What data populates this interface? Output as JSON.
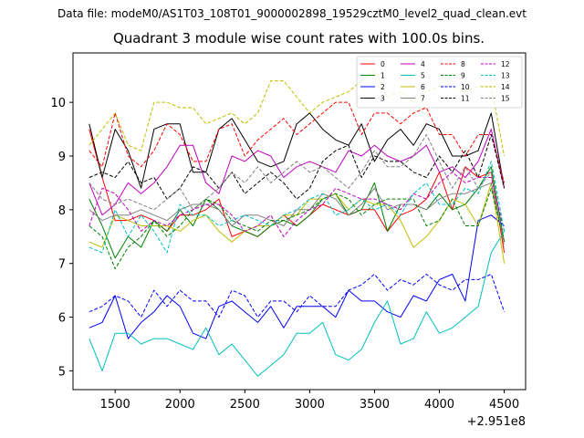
{
  "header": {
    "data_file": "Data file: modeM0/AS1T03_108T01_9000002898_19529cztM0_level2_quad_clean.evt"
  },
  "chart_data": {
    "type": "line",
    "title": "Quadrant 3 module wise count rates with 100.0s bins.",
    "xlabel": "",
    "ylabel": "",
    "x_offset_label": "+2.951e8",
    "xlim": [
      1175,
      4665
    ],
    "ylim": [
      4.65,
      10.92
    ],
    "xticks": [
      1500,
      2000,
      2500,
      3000,
      3500,
      4000,
      4500
    ],
    "xtick_labels": [
      "1500",
      "2000",
      "2500",
      "3000",
      "3500",
      "4000",
      "4500"
    ],
    "yticks": [
      5,
      6,
      7,
      8,
      9,
      10
    ],
    "ytick_labels": [
      "5",
      "6",
      "7",
      "8",
      "9",
      "10"
    ],
    "x": [
      1300,
      1400,
      1500,
      1600,
      1700,
      1800,
      1900,
      2000,
      2100,
      2200,
      2300,
      2400,
      2500,
      2600,
      2700,
      2800,
      2900,
      3000,
      3100,
      3200,
      3300,
      3400,
      3500,
      3600,
      3700,
      3800,
      3900,
      4000,
      4100,
      4200,
      4300,
      4400,
      4500
    ],
    "legend_position": "top-right",
    "series": [
      {
        "name": "0",
        "color": "#ff0000",
        "dash": "solid",
        "values": [
          9.5,
          8.6,
          7.8,
          7.8,
          7.9,
          7.8,
          7.6,
          7.9,
          7.9,
          8.0,
          8.2,
          7.5,
          7.6,
          7.5,
          7.7,
          7.9,
          7.7,
          7.9,
          8.1,
          8.0,
          7.9,
          8.0,
          8.0,
          7.6,
          7.9,
          8.0,
          8.2,
          8.7,
          8.0,
          8.8,
          8.6,
          8.7,
          7.2
        ]
      },
      {
        "name": "1",
        "color": "#008000",
        "dash": "solid",
        "values": [
          8.2,
          7.7,
          7.1,
          7.5,
          7.3,
          7.8,
          7.6,
          8.0,
          7.7,
          8.2,
          8.0,
          7.7,
          7.6,
          7.5,
          7.7,
          7.8,
          7.7,
          7.9,
          8.2,
          8.3,
          7.9,
          8.0,
          8.5,
          7.6,
          8.1,
          8.1,
          8.0,
          8.3,
          8.0,
          8.1,
          8.4,
          8.8,
          7.4
        ]
      },
      {
        "name": "2",
        "color": "#0000ff",
        "dash": "solid",
        "values": [
          5.8,
          5.9,
          6.4,
          5.6,
          5.9,
          6.1,
          6.4,
          6.2,
          5.7,
          5.6,
          6.2,
          6.3,
          6.1,
          5.9,
          6.2,
          5.8,
          6.2,
          6.2,
          6.2,
          6.0,
          6.5,
          6.3,
          6.3,
          6.1,
          6.0,
          6.4,
          6.3,
          6.7,
          6.8,
          6.3,
          7.8,
          7.9,
          7.7
        ]
      },
      {
        "name": "3",
        "color": "#000000",
        "dash": "solid",
        "values": [
          9.6,
          8.6,
          9.5,
          9.1,
          8.4,
          9.5,
          9.6,
          9.6,
          8.7,
          8.7,
          9.5,
          9.7,
          9.3,
          8.9,
          8.8,
          8.9,
          9.6,
          9.8,
          9.5,
          9.3,
          9.2,
          9.6,
          8.9,
          9.3,
          9.5,
          9.2,
          9.6,
          9.5,
          9.0,
          9.0,
          9.1,
          9.8,
          8.4
        ]
      },
      {
        "name": "4",
        "color": "#bf00bf",
        "dash": "solid",
        "values": [
          8.5,
          7.9,
          8.1,
          8.5,
          8.3,
          8.5,
          8.8,
          9.2,
          9.2,
          8.5,
          8.3,
          9.0,
          8.9,
          9.1,
          9.0,
          8.6,
          8.8,
          8.9,
          8.8,
          8.7,
          9.1,
          9.0,
          9.2,
          9.0,
          8.9,
          9.0,
          9.2,
          8.7,
          8.8,
          8.6,
          8.9,
          9.5,
          8.4
        ]
      },
      {
        "name": "5",
        "color": "#00bfbf",
        "dash": "solid",
        "values": [
          5.6,
          5.0,
          5.7,
          5.7,
          5.5,
          5.6,
          5.6,
          5.5,
          5.4,
          5.8,
          5.3,
          5.5,
          5.2,
          4.9,
          5.1,
          5.3,
          5.7,
          5.7,
          5.9,
          5.3,
          5.2,
          5.4,
          5.9,
          6.3,
          5.5,
          5.6,
          6.1,
          5.7,
          5.8,
          6.0,
          6.2,
          7.2,
          7.6
        ]
      },
      {
        "name": "6",
        "color": "#bfbf00",
        "dash": "solid",
        "values": [
          7.4,
          7.3,
          7.9,
          7.8,
          7.7,
          7.7,
          7.7,
          7.6,
          7.8,
          7.9,
          7.6,
          7.4,
          7.6,
          7.7,
          7.7,
          7.9,
          7.9,
          8.2,
          8.2,
          8.3,
          8.0,
          8.2,
          8.1,
          8.1,
          7.8,
          7.3,
          7.5,
          7.8,
          8.2,
          8.1,
          7.7,
          8.5,
          7.0
        ]
      },
      {
        "name": "7",
        "color": "#808080",
        "dash": "solid",
        "values": [
          8.0,
          7.8,
          7.9,
          7.9,
          8.0,
          7.9,
          7.8,
          8.0,
          8.1,
          8.1,
          8.0,
          7.7,
          7.9,
          7.9,
          7.8,
          7.7,
          8.0,
          8.0,
          8.3,
          8.2,
          7.9,
          8.1,
          8.4,
          8.0,
          8.1,
          8.1,
          8.0,
          8.2,
          8.3,
          8.3,
          8.4,
          8.5,
          7.4
        ]
      },
      {
        "name": "8",
        "color": "#ff0000",
        "dash": "dashed",
        "values": [
          9.1,
          8.8,
          9.8,
          9.0,
          8.8,
          9.1,
          9.6,
          9.4,
          8.9,
          8.9,
          9.5,
          9.6,
          9.0,
          9.3,
          9.5,
          9.7,
          9.4,
          9.6,
          9.8,
          10.0,
          10.0,
          9.4,
          9.8,
          9.8,
          9.6,
          9.8,
          9.9,
          9.4,
          9.4,
          9.0,
          9.4,
          9.4,
          8.5
        ]
      },
      {
        "name": "9",
        "color": "#008000",
        "dash": "dashed",
        "values": [
          7.7,
          7.5,
          6.9,
          7.3,
          7.5,
          7.8,
          7.5,
          7.7,
          8.0,
          8.2,
          8.1,
          7.8,
          7.7,
          7.6,
          7.8,
          7.8,
          7.9,
          8.0,
          8.2,
          8.3,
          8.2,
          7.9,
          8.1,
          8.2,
          8.2,
          8.2,
          7.7,
          7.8,
          8.2,
          7.7,
          7.7,
          8.4,
          7.4
        ]
      },
      {
        "name": "10",
        "color": "#0000ff",
        "dash": "dashed",
        "values": [
          6.1,
          6.2,
          6.4,
          6.3,
          6.0,
          6.5,
          6.2,
          6.5,
          6.3,
          6.3,
          6.0,
          6.5,
          6.4,
          6.0,
          6.3,
          6.3,
          6.1,
          6.4,
          6.2,
          6.2,
          6.5,
          6.6,
          6.8,
          6.5,
          6.7,
          6.6,
          6.8,
          6.6,
          6.5,
          6.7,
          6.7,
          6.8,
          6.1
        ]
      },
      {
        "name": "11",
        "color": "#000000",
        "dash": "dashed",
        "values": [
          8.6,
          8.7,
          8.6,
          8.9,
          8.5,
          8.6,
          8.2,
          8.4,
          8.8,
          8.7,
          8.4,
          8.7,
          8.3,
          8.5,
          8.7,
          8.5,
          8.2,
          8.4,
          8.9,
          9.1,
          9.2,
          8.6,
          9.0,
          8.9,
          8.9,
          8.7,
          8.6,
          9.0,
          8.7,
          9.1,
          8.6,
          9.4,
          8.4
        ]
      },
      {
        "name": "12",
        "color": "#bf00bf",
        "dash": "dashed",
        "values": [
          7.7,
          8.4,
          8.3,
          8.0,
          7.6,
          7.8,
          7.7,
          7.9,
          8.0,
          8.1,
          8.1,
          7.9,
          7.6,
          7.7,
          7.9,
          7.5,
          7.8,
          8.0,
          8.1,
          8.4,
          8.3,
          8.2,
          8.2,
          8.1,
          8.0,
          8.3,
          8.2,
          8.5,
          8.7,
          8.5,
          8.6,
          8.6,
          7.6
        ]
      },
      {
        "name": "13",
        "color": "#00bfbf",
        "dash": "dashed",
        "values": [
          7.3,
          7.2,
          8.0,
          7.5,
          7.9,
          7.6,
          7.2,
          8.1,
          7.9,
          7.9,
          7.7,
          7.8,
          7.9,
          7.8,
          7.7,
          7.9,
          8.0,
          8.2,
          8.3,
          7.9,
          8.0,
          8.2,
          8.0,
          8.1,
          7.9,
          8.3,
          8.5,
          8.1,
          8.1,
          8.4,
          8.3,
          8.9,
          7.6
        ]
      },
      {
        "name": "14",
        "color": "#bfbf00",
        "dash": "dashed",
        "values": [
          9.2,
          9.5,
          9.8,
          9.2,
          9.1,
          10.0,
          10.0,
          9.9,
          9.9,
          9.6,
          9.7,
          9.8,
          9.6,
          9.8,
          10.4,
          10.4,
          10.1,
          9.8,
          10.0,
          10.1,
          10.2,
          10.4,
          10.6,
          10.1,
          10.2,
          10.0,
          10.2,
          10.3,
          10.3,
          10.2,
          10.3,
          10.3,
          9.0
        ]
      },
      {
        "name": "15",
        "color": "#808080",
        "dash": "dashed",
        "values": [
          8.5,
          8.2,
          8.1,
          8.2,
          8.1,
          8.0,
          8.2,
          8.4,
          8.0,
          8.2,
          8.4,
          8.7,
          8.5,
          8.8,
          8.5,
          8.7,
          8.9,
          8.7,
          8.8,
          8.6,
          8.4,
          8.7,
          9.1,
          8.8,
          8.8,
          9.0,
          9.4,
          8.9,
          8.4,
          8.8,
          8.4,
          8.7,
          7.3
        ]
      }
    ]
  }
}
